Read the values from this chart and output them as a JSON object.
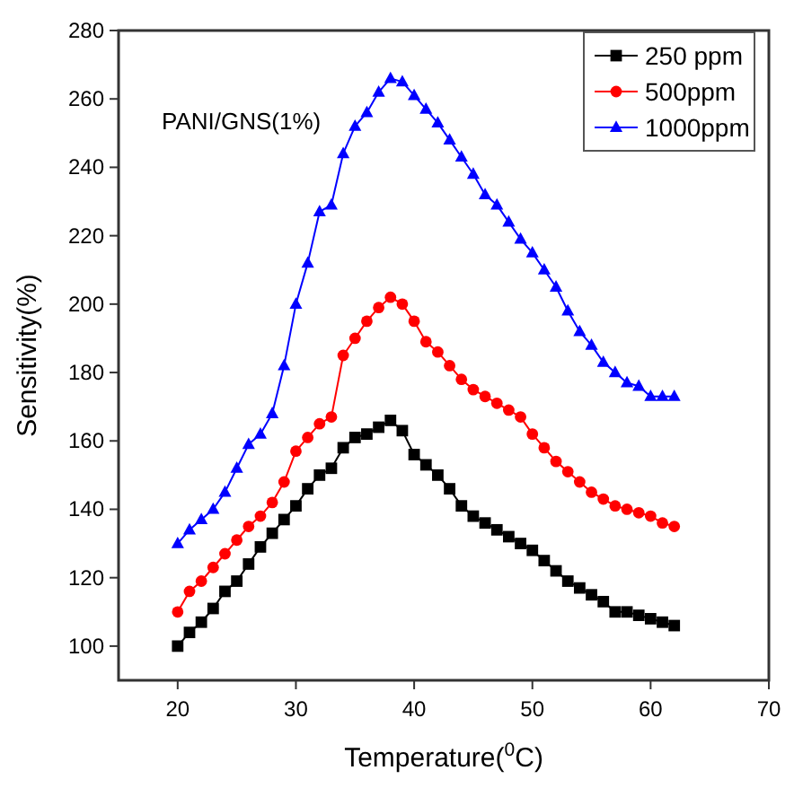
{
  "chart_data": {
    "type": "line",
    "xlabel": "Temperature($^{0}$C)",
    "ylabel": "Sensitivity(%)",
    "annotations": [
      "PANI/GNS(1%)"
    ],
    "x": [
      20,
      21,
      22,
      23,
      24,
      25,
      26,
      27,
      28,
      29,
      30,
      31,
      32,
      33,
      34,
      35,
      36,
      37,
      38,
      39,
      40,
      41,
      42,
      43,
      44,
      45,
      46,
      47,
      48,
      49,
      50,
      51,
      52,
      53,
      54,
      55,
      56,
      57,
      58,
      59,
      60,
      61,
      62
    ],
    "xlim": [
      15,
      70
    ],
    "xticks": [
      20,
      30,
      40,
      50,
      60,
      70
    ],
    "ylim": [
      90,
      280
    ],
    "yticks": [
      100,
      120,
      140,
      160,
      180,
      200,
      220,
      240,
      260,
      280
    ],
    "grid": false,
    "legend": "top right",
    "series": [
      {
        "name": "250 ppm",
        "color": "#000000",
        "marker": "square",
        "values": [
          100,
          104,
          107,
          111,
          116,
          119,
          124,
          129,
          133,
          137,
          141,
          146,
          150,
          152,
          158,
          161,
          162,
          164,
          166,
          163,
          156,
          153,
          150,
          146,
          141,
          138,
          136,
          134,
          132,
          130,
          128,
          125,
          122,
          119,
          117,
          115,
          113,
          110,
          110,
          109,
          108,
          107,
          106
        ]
      },
      {
        "name": "500ppm",
        "color": "#ff0000",
        "marker": "circle",
        "values": [
          110,
          116,
          119,
          123,
          127,
          131,
          135,
          138,
          142,
          148,
          157,
          161,
          165,
          167,
          185,
          190,
          195,
          199,
          202,
          200,
          195,
          189,
          186,
          182,
          178,
          175,
          173,
          171,
          169,
          167,
          162,
          158,
          154,
          151,
          148,
          145,
          143,
          141,
          140,
          139,
          138,
          136,
          135
        ]
      },
      {
        "name": "1000ppm",
        "color": "#0000ff",
        "marker": "triangle",
        "values": [
          130,
          134,
          137,
          140,
          145,
          152,
          159,
          162,
          168,
          182,
          200,
          212,
          227,
          229,
          244,
          252,
          256,
          262,
          266,
          265,
          261,
          257,
          253,
          248,
          243,
          238,
          232,
          229,
          224,
          219,
          215,
          210,
          205,
          198,
          192,
          188,
          183,
          180,
          177,
          176,
          173,
          173,
          173
        ]
      }
    ]
  }
}
